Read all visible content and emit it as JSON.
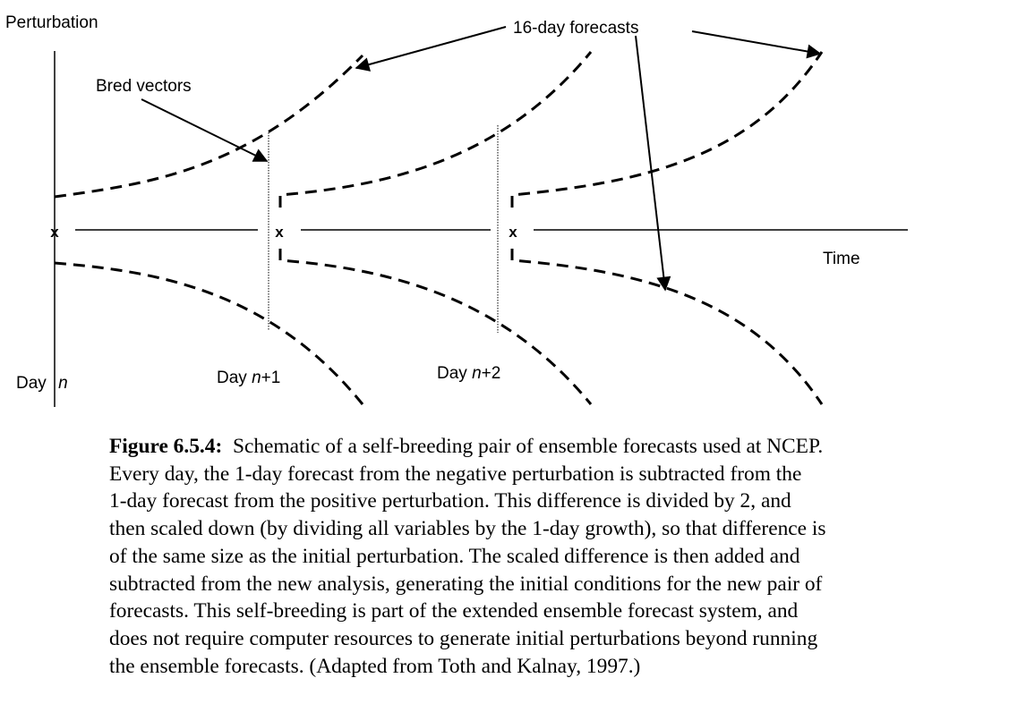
{
  "diagram": {
    "y_axis_label": "Perturbation",
    "x_axis_label": "Time",
    "forecast_label": "16-day forecasts",
    "bred_label": "Bred vectors",
    "analysis_marker": "x",
    "day_labels": [
      {
        "prefix": "Day ",
        "var": "n",
        "suffix": ""
      },
      {
        "prefix": "Day ",
        "var": "n",
        "suffix": "+1"
      },
      {
        "prefix": "Day ",
        "var": "n",
        "suffix": "+2"
      }
    ]
  },
  "caption": {
    "title": "Figure 6.5.4:",
    "lines": [
      "  Schematic of a self-breeding pair of ensemble forecasts used at NCEP.",
      "Every day, the 1-day forecast from the negative perturbation is subtracted from the",
      "1-day forecast from the positive perturbation. This difference is divided by 2, and",
      "then scaled down (by dividing all variables by the 1-day growth), so that difference is",
      "of the same size as the initial perturbation. The scaled difference is then added and",
      "subtracted from the new analysis, generating the initial conditions for the new pair of",
      "forecasts. This self-breeding is part of the extended ensemble forecast system, and",
      "does not require computer resources to generate initial perturbations beyond running",
      "the ensemble forecasts. (Adapted from Toth and Kalnay, 1997.)"
    ]
  }
}
